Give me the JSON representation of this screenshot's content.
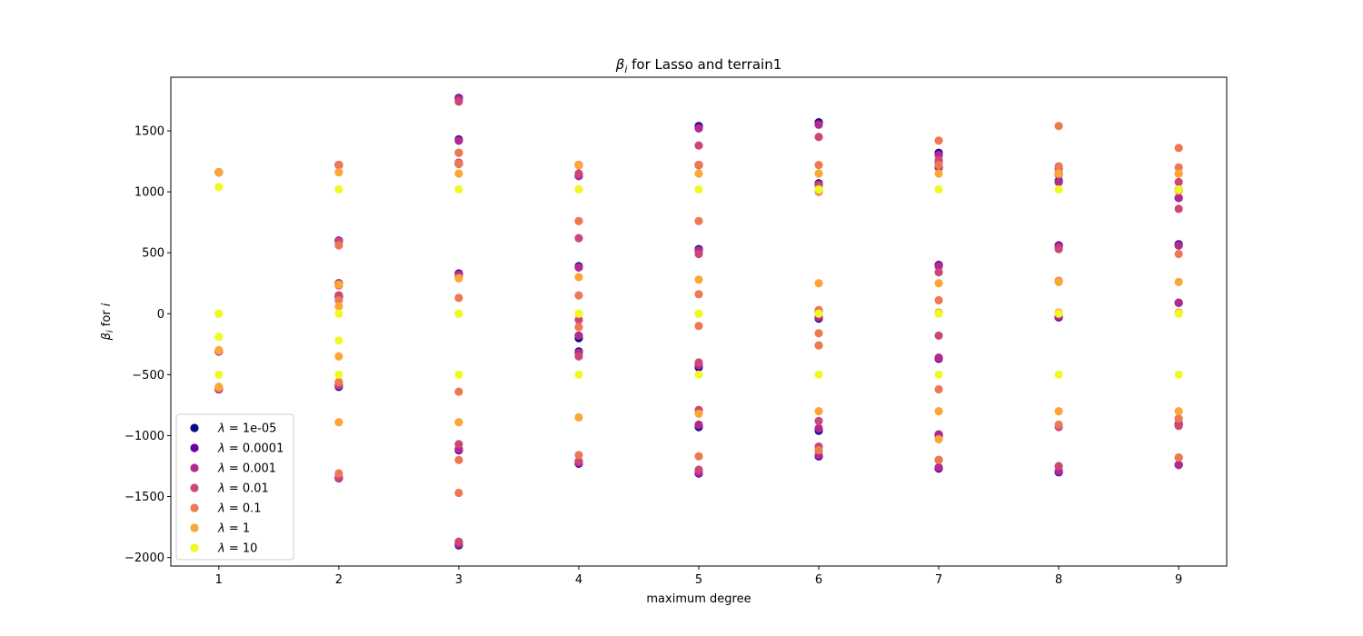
{
  "chart_data": {
    "type": "scatter",
    "title_symbol": "β",
    "title_subscript": "i",
    "title_rest": " for Lasso and terrain1",
    "xlabel": "maximum degree",
    "ylabel_symbol": "β",
    "ylabel_subscript": "i",
    "ylabel_rest": " for ",
    "ylabel_index": "i",
    "xlim": [
      0.6,
      9.4
    ],
    "ylim": [
      -2070,
      1940
    ],
    "x_ticks": [
      1,
      2,
      3,
      4,
      5,
      6,
      7,
      8,
      9
    ],
    "y_ticks": [
      -2000,
      -1500,
      -1000,
      -500,
      0,
      500,
      1000,
      1500
    ],
    "y_tick_labels": [
      "−2000",
      "−1500",
      "−1000",
      "−500",
      "0",
      "500",
      "1000",
      "1500"
    ],
    "legend_position": "lower-left",
    "lambda_symbol": "λ",
    "series": [
      {
        "name": "1e-05",
        "color": "#0d0887",
        "points": [
          [
            1,
            1160
          ],
          [
            1,
            -310
          ],
          [
            1,
            -620
          ],
          [
            2,
            1220
          ],
          [
            2,
            600
          ],
          [
            2,
            240
          ],
          [
            2,
            140
          ],
          [
            2,
            -600
          ],
          [
            2,
            -1350
          ],
          [
            3,
            1770
          ],
          [
            3,
            1430
          ],
          [
            3,
            1230
          ],
          [
            3,
            330
          ],
          [
            3,
            -1120
          ],
          [
            3,
            -1900
          ],
          [
            4,
            1220
          ],
          [
            4,
            1130
          ],
          [
            4,
            390
          ],
          [
            4,
            -200
          ],
          [
            4,
            -310
          ],
          [
            4,
            -1230
          ],
          [
            5,
            1540
          ],
          [
            5,
            1220
          ],
          [
            5,
            530
          ],
          [
            5,
            -440
          ],
          [
            5,
            -930
          ],
          [
            5,
            -1310
          ],
          [
            6,
            1570
          ],
          [
            6,
            1070
          ],
          [
            6,
            -40
          ],
          [
            6,
            -960
          ],
          [
            6,
            -1170
          ],
          [
            7,
            1320
          ],
          [
            7,
            1200
          ],
          [
            7,
            400
          ],
          [
            7,
            -370
          ],
          [
            7,
            -1000
          ],
          [
            7,
            -1270
          ],
          [
            8,
            1150
          ],
          [
            8,
            1090
          ],
          [
            8,
            560
          ],
          [
            8,
            -30
          ],
          [
            8,
            -1300
          ],
          [
            9,
            1020
          ],
          [
            9,
            950
          ],
          [
            9,
            570
          ],
          [
            9,
            90
          ],
          [
            9,
            -910
          ],
          [
            9,
            -1240
          ]
        ]
      },
      {
        "name": "0.0001",
        "color": "#6a00a8",
        "points": [
          [
            1,
            1160
          ],
          [
            1,
            -310
          ],
          [
            1,
            -620
          ],
          [
            2,
            1220
          ],
          [
            2,
            600
          ],
          [
            2,
            250
          ],
          [
            2,
            140
          ],
          [
            2,
            -590
          ],
          [
            2,
            -1350
          ],
          [
            3,
            1770
          ],
          [
            3,
            1420
          ],
          [
            3,
            1230
          ],
          [
            3,
            330
          ],
          [
            3,
            -1120
          ],
          [
            3,
            -1890
          ],
          [
            4,
            1220
          ],
          [
            4,
            1130
          ],
          [
            4,
            380
          ],
          [
            4,
            -180
          ],
          [
            4,
            -320
          ],
          [
            4,
            -1230
          ],
          [
            5,
            1530
          ],
          [
            5,
            1220
          ],
          [
            5,
            520
          ],
          [
            5,
            -430
          ],
          [
            5,
            -920
          ],
          [
            5,
            -1310
          ],
          [
            6,
            1560
          ],
          [
            6,
            1060
          ],
          [
            6,
            -30
          ],
          [
            6,
            -950
          ],
          [
            6,
            -1170
          ],
          [
            7,
            1310
          ],
          [
            7,
            1200
          ],
          [
            7,
            400
          ],
          [
            7,
            -370
          ],
          [
            7,
            -990
          ],
          [
            7,
            -1270
          ],
          [
            8,
            1150
          ],
          [
            8,
            1080
          ],
          [
            8,
            560
          ],
          [
            8,
            -30
          ],
          [
            8,
            -1300
          ],
          [
            9,
            1020
          ],
          [
            9,
            950
          ],
          [
            9,
            560
          ],
          [
            9,
            90
          ],
          [
            9,
            -910
          ],
          [
            9,
            -1240
          ]
        ]
      },
      {
        "name": "0.001",
        "color": "#b12a90",
        "points": [
          [
            1,
            1160
          ],
          [
            1,
            -310
          ],
          [
            1,
            -620
          ],
          [
            2,
            1220
          ],
          [
            2,
            600
          ],
          [
            2,
            250
          ],
          [
            2,
            150
          ],
          [
            2,
            -590
          ],
          [
            2,
            -1350
          ],
          [
            3,
            1760
          ],
          [
            3,
            1420
          ],
          [
            3,
            1230
          ],
          [
            3,
            320
          ],
          [
            3,
            -1110
          ],
          [
            3,
            -1890
          ],
          [
            4,
            1220
          ],
          [
            4,
            1130
          ],
          [
            4,
            380
          ],
          [
            4,
            -180
          ],
          [
            4,
            -320
          ],
          [
            4,
            -1220
          ],
          [
            5,
            1520
          ],
          [
            5,
            1220
          ],
          [
            5,
            520
          ],
          [
            5,
            -420
          ],
          [
            5,
            -910
          ],
          [
            5,
            -1300
          ],
          [
            6,
            1550
          ],
          [
            6,
            1060
          ],
          [
            6,
            -30
          ],
          [
            6,
            -940
          ],
          [
            6,
            -1160
          ],
          [
            7,
            1300
          ],
          [
            7,
            1200
          ],
          [
            7,
            390
          ],
          [
            7,
            -360
          ],
          [
            7,
            -990
          ],
          [
            7,
            -1260
          ],
          [
            8,
            1150
          ],
          [
            8,
            1080
          ],
          [
            8,
            550
          ],
          [
            8,
            -20
          ],
          [
            8,
            -1290
          ],
          [
            9,
            1010
          ],
          [
            9,
            950
          ],
          [
            9,
            560
          ],
          [
            9,
            90
          ],
          [
            9,
            -900
          ],
          [
            9,
            -1240
          ]
        ]
      },
      {
        "name": "0.01",
        "color": "#cc4778",
        "points": [
          [
            1,
            1160
          ],
          [
            1,
            -310
          ],
          [
            1,
            -610
          ],
          [
            2,
            1220
          ],
          [
            2,
            590
          ],
          [
            2,
            240
          ],
          [
            2,
            150
          ],
          [
            2,
            -580
          ],
          [
            2,
            -1340
          ],
          [
            3,
            1740
          ],
          [
            3,
            1320
          ],
          [
            3,
            1240
          ],
          [
            3,
            300
          ],
          [
            3,
            -1070
          ],
          [
            3,
            -1870
          ],
          [
            4,
            1220
          ],
          [
            4,
            1150
          ],
          [
            4,
            620
          ],
          [
            4,
            -50
          ],
          [
            4,
            -350
          ],
          [
            4,
            -1210
          ],
          [
            5,
            1380
          ],
          [
            5,
            1220
          ],
          [
            5,
            490
          ],
          [
            5,
            -400
          ],
          [
            5,
            -790
          ],
          [
            5,
            -1280
          ],
          [
            6,
            1450
          ],
          [
            6,
            1050
          ],
          [
            6,
            20
          ],
          [
            6,
            -880
          ],
          [
            6,
            -1090
          ],
          [
            7,
            1260
          ],
          [
            7,
            1240
          ],
          [
            7,
            340
          ],
          [
            7,
            -180
          ],
          [
            7,
            -1200
          ],
          [
            8,
            1190
          ],
          [
            8,
            1140
          ],
          [
            8,
            530
          ],
          [
            8,
            -930
          ],
          [
            8,
            -1250
          ],
          [
            9,
            1150
          ],
          [
            9,
            1080
          ],
          [
            9,
            860
          ],
          [
            9,
            -920
          ],
          [
            9,
            -1180
          ]
        ]
      },
      {
        "name": "0.1",
        "color": "#ed7953",
        "points": [
          [
            1,
            1160
          ],
          [
            1,
            -300
          ],
          [
            1,
            -610
          ],
          [
            2,
            1220
          ],
          [
            2,
            560
          ],
          [
            2,
            230
          ],
          [
            2,
            110
          ],
          [
            2,
            -560
          ],
          [
            2,
            -1310
          ],
          [
            3,
            1320
          ],
          [
            3,
            1230
          ],
          [
            3,
            130
          ],
          [
            3,
            -640
          ],
          [
            3,
            -1200
          ],
          [
            3,
            -1470
          ],
          [
            4,
            1220
          ],
          [
            4,
            760
          ],
          [
            4,
            150
          ],
          [
            4,
            -110
          ],
          [
            4,
            -1160
          ],
          [
            5,
            1220
          ],
          [
            5,
            760
          ],
          [
            5,
            160
          ],
          [
            5,
            -100
          ],
          [
            5,
            -1170
          ],
          [
            6,
            1220
          ],
          [
            6,
            1000
          ],
          [
            6,
            30
          ],
          [
            6,
            -160
          ],
          [
            6,
            -260
          ],
          [
            6,
            -1120
          ],
          [
            7,
            1420
          ],
          [
            7,
            1220
          ],
          [
            7,
            110
          ],
          [
            7,
            -620
          ],
          [
            7,
            -1200
          ],
          [
            8,
            1540
          ],
          [
            8,
            1210
          ],
          [
            8,
            270
          ],
          [
            8,
            -910
          ],
          [
            9,
            1360
          ],
          [
            9,
            1200
          ],
          [
            9,
            490
          ],
          [
            9,
            -860
          ],
          [
            9,
            -1180
          ]
        ]
      },
      {
        "name": "1",
        "color": "#fca636",
        "points": [
          [
            1,
            1160
          ],
          [
            1,
            0
          ],
          [
            1,
            -300
          ],
          [
            1,
            -600
          ],
          [
            2,
            1160
          ],
          [
            2,
            240
          ],
          [
            2,
            60
          ],
          [
            2,
            -350
          ],
          [
            2,
            -890
          ],
          [
            3,
            1150
          ],
          [
            3,
            290
          ],
          [
            3,
            0
          ],
          [
            3,
            -890
          ],
          [
            4,
            1220
          ],
          [
            4,
            1020
          ],
          [
            4,
            300
          ],
          [
            4,
            0
          ],
          [
            4,
            -850
          ],
          [
            5,
            1150
          ],
          [
            5,
            280
          ],
          [
            5,
            0
          ],
          [
            5,
            -820
          ],
          [
            6,
            1150
          ],
          [
            6,
            1010
          ],
          [
            6,
            250
          ],
          [
            6,
            0
          ],
          [
            6,
            -800
          ],
          [
            7,
            1150
          ],
          [
            7,
            250
          ],
          [
            7,
            10
          ],
          [
            7,
            -800
          ],
          [
            7,
            -1030
          ],
          [
            8,
            1150
          ],
          [
            8,
            260
          ],
          [
            8,
            10
          ],
          [
            8,
            -800
          ],
          [
            9,
            1150
          ],
          [
            9,
            1010
          ],
          [
            9,
            260
          ],
          [
            9,
            10
          ],
          [
            9,
            -800
          ]
        ]
      },
      {
        "name": "10",
        "color": "#f0f921",
        "points": [
          [
            1,
            1040
          ],
          [
            1,
            0
          ],
          [
            1,
            -190
          ],
          [
            1,
            -500
          ],
          [
            2,
            1020
          ],
          [
            2,
            0
          ],
          [
            2,
            -220
          ],
          [
            2,
            -500
          ],
          [
            3,
            1020
          ],
          [
            3,
            0
          ],
          [
            3,
            -500
          ],
          [
            4,
            1020
          ],
          [
            4,
            0
          ],
          [
            4,
            -500
          ],
          [
            5,
            1020
          ],
          [
            5,
            0
          ],
          [
            5,
            -500
          ],
          [
            6,
            1020
          ],
          [
            6,
            0
          ],
          [
            6,
            -500
          ],
          [
            7,
            1020
          ],
          [
            7,
            0
          ],
          [
            7,
            -500
          ],
          [
            8,
            1020
          ],
          [
            8,
            0
          ],
          [
            8,
            -500
          ],
          [
            9,
            1020
          ],
          [
            9,
            0
          ],
          [
            9,
            -500
          ]
        ]
      }
    ]
  }
}
